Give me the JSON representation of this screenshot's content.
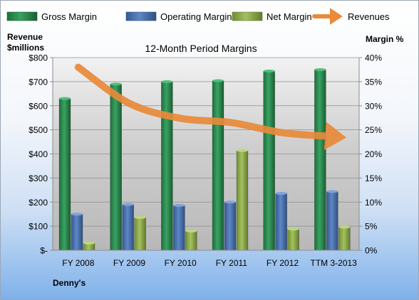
{
  "chart_data": {
    "type": "bar",
    "title": "12-Month Period Margins",
    "company": "Denny's",
    "y_left_label": [
      "Revenue",
      "$millions"
    ],
    "y_right_label": "Margin %",
    "categories": [
      "FY 2008",
      "FY 2009",
      "FY 2010",
      "FY 2011",
      "FY 2012",
      "TTM 3-2013"
    ],
    "y_left_ticks": [
      "$-",
      "$100",
      "$200",
      "$300",
      "$400",
      "$500",
      "$600",
      "$700",
      "$800"
    ],
    "y_right_ticks": [
      "0%",
      "5%",
      "10%",
      "15%",
      "20%",
      "25%",
      "30%",
      "35%",
      "40%"
    ],
    "ylim": [
      0,
      800
    ],
    "y2lim": [
      0,
      40
    ],
    "legend_position": "top",
    "series": [
      {
        "name": "Gross Margin",
        "kind": "bar",
        "axis": "right",
        "color": "#2e8b50",
        "values": [
          31.5,
          34.5,
          35.0,
          35.2,
          37.2,
          37.5
        ]
      },
      {
        "name": "Operating Margin",
        "kind": "bar",
        "axis": "right",
        "color": "#4a72b0",
        "values": [
          7.5,
          9.5,
          9.3,
          10.0,
          11.8,
          12.2
        ]
      },
      {
        "name": "Net Margin",
        "kind": "bar",
        "axis": "right",
        "color": "#8fb04a",
        "values": [
          1.5,
          6.8,
          4.0,
          20.7,
          4.4,
          4.8
        ]
      },
      {
        "name": "Revenues",
        "kind": "line",
        "axis": "left",
        "color": "#e98a3a",
        "values": [
          760,
          610,
          548,
          530,
          488,
          472
        ]
      }
    ]
  }
}
